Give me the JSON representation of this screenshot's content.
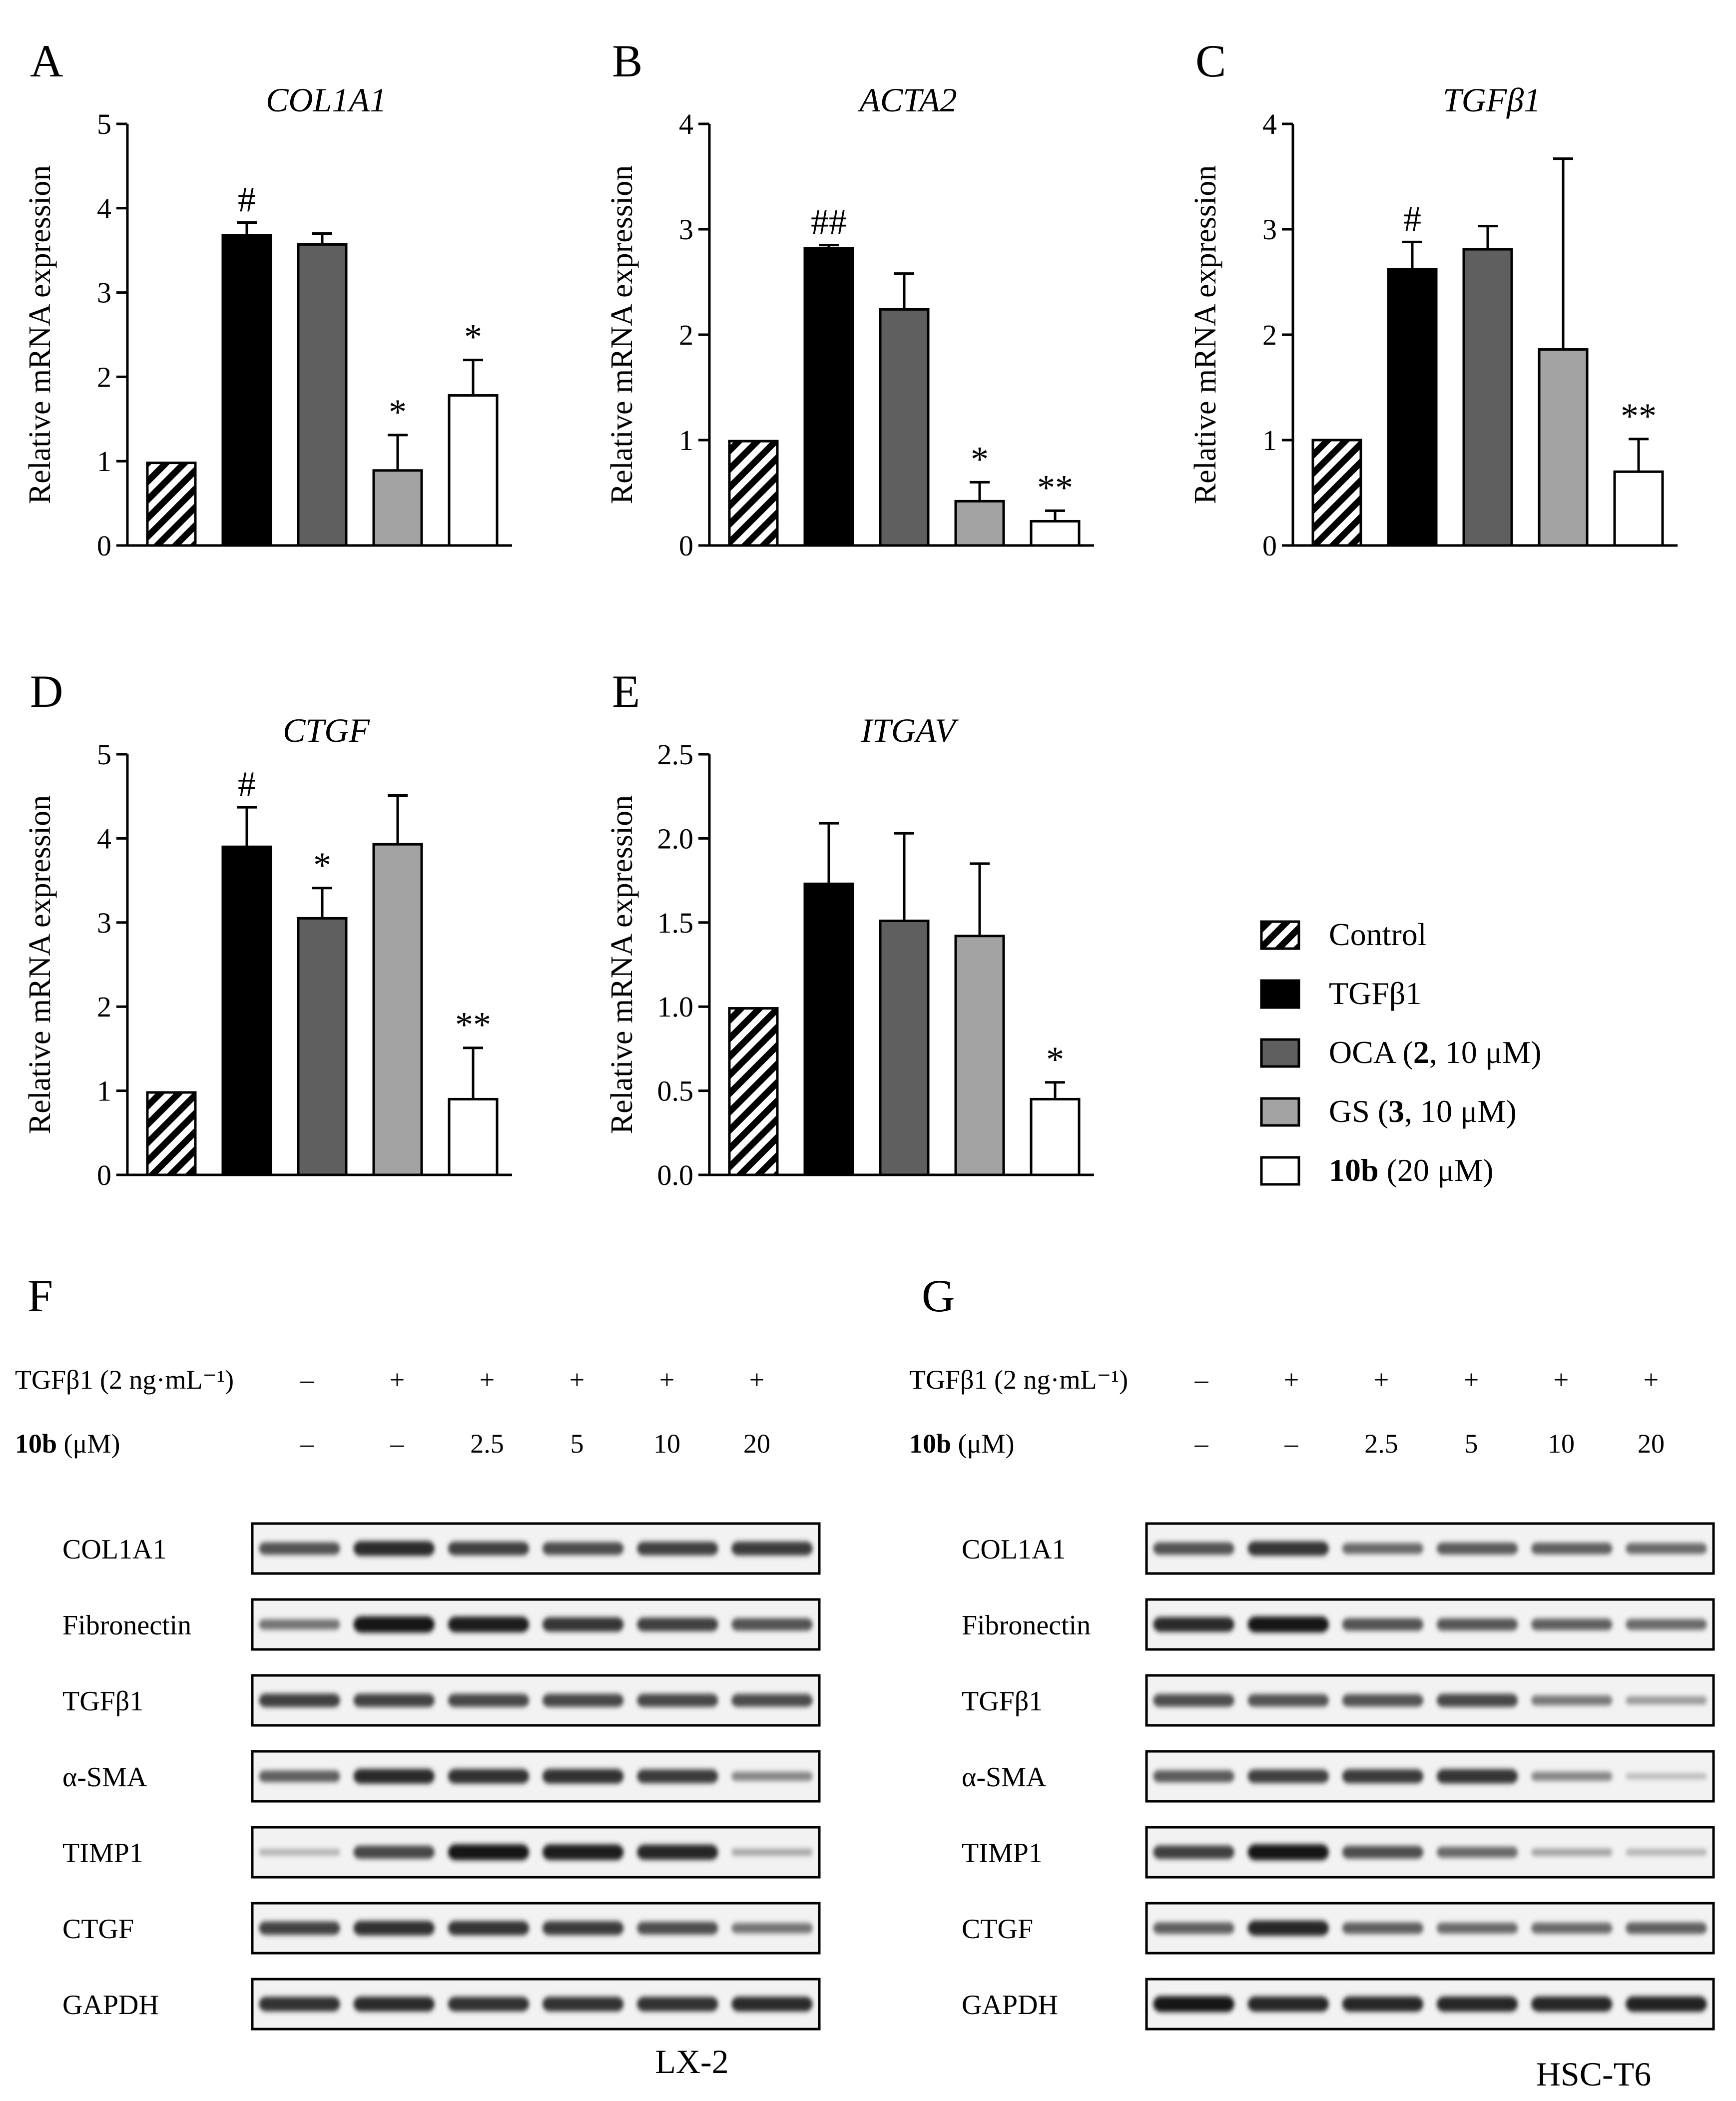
{
  "legend": {
    "items": [
      {
        "label_pre": "",
        "label_bold": "",
        "label_post": "Control",
        "fill": "hatch"
      },
      {
        "label_pre": "",
        "label_bold": "",
        "label_post": "TGFβ1",
        "fill": "#000000"
      },
      {
        "label_pre": "OCA (",
        "label_bold": "2",
        "label_post": ", 10 μM)",
        "fill": "#5f5f5f"
      },
      {
        "label_pre": "GS (",
        "label_bold": "3",
        "label_post": ", 10 μM)",
        "fill": "#a3a3a3"
      },
      {
        "label_pre": "",
        "label_bold": "10b",
        "label_post": " (20 μM)",
        "fill": "#ffffff"
      }
    ]
  },
  "chart_data": [
    {
      "panel": "A",
      "type": "bar",
      "title": "COL1A1",
      "ylabel": "Relative mRNA expression",
      "ylim": [
        0,
        5
      ],
      "yticks": [
        "0",
        "1",
        "2",
        "3",
        "4",
        "5"
      ],
      "categories": [
        "Control",
        "TGFβ1",
        "OCA (2, 10 μM)",
        "GS (3, 10 μM)",
        "10b (20 μM)"
      ],
      "values": [
        0.98,
        3.68,
        3.57,
        0.89,
        1.78
      ],
      "errors": [
        0,
        0.15,
        0.13,
        0.42,
        0.42
      ],
      "annotations": [
        "",
        "#",
        "",
        "*",
        "*"
      ]
    },
    {
      "panel": "B",
      "type": "bar",
      "title": "ACTA2",
      "ylabel": "Relative mRNA expression",
      "ylim": [
        0,
        4
      ],
      "yticks": [
        "0",
        "1",
        "2",
        "3",
        "4"
      ],
      "categories": [
        "Control",
        "TGFβ1",
        "OCA (2, 10 μM)",
        "GS (3, 10 μM)",
        "10b (20 μM)"
      ],
      "values": [
        0.99,
        2.82,
        2.24,
        0.42,
        0.23
      ],
      "errors": [
        0,
        0.03,
        0.34,
        0.18,
        0.1
      ],
      "annotations": [
        "",
        "##",
        "",
        "*",
        "**"
      ]
    },
    {
      "panel": "C",
      "type": "bar",
      "title": "TGFβ1",
      "ylabel": "Relative mRNA expression",
      "ylim": [
        0,
        4
      ],
      "yticks": [
        "0",
        "1",
        "2",
        "3",
        "4"
      ],
      "categories": [
        "Control",
        "TGFβ1",
        "OCA (2, 10 μM)",
        "GS (3, 10 μM)",
        "10b (20 μM)"
      ],
      "values": [
        1.0,
        2.62,
        2.81,
        1.86,
        0.7
      ],
      "errors": [
        0,
        0.26,
        0.22,
        1.81,
        0.31
      ],
      "annotations": [
        "",
        "#",
        "",
        "",
        "**"
      ]
    },
    {
      "panel": "D",
      "type": "bar",
      "title": "CTGF",
      "ylabel": "Relative mRNA expression",
      "ylim": [
        0,
        5
      ],
      "yticks": [
        "0",
        "1",
        "2",
        "3",
        "4",
        "5"
      ],
      "categories": [
        "Control",
        "TGFβ1",
        "OCA (2, 10 μM)",
        "GS (3, 10 μM)",
        "10b (20 μM)"
      ],
      "values": [
        0.98,
        3.9,
        3.05,
        3.93,
        0.9
      ],
      "errors": [
        0,
        0.47,
        0.36,
        0.58,
        0.61
      ],
      "annotations": [
        "",
        "#",
        "*",
        "",
        "**"
      ]
    },
    {
      "panel": "E",
      "type": "bar",
      "title": "ITGAV",
      "ylabel": "Relative mRNA expression",
      "ylim": [
        0,
        2.5
      ],
      "yticks": [
        "0.0",
        "0.5",
        "1.0",
        "1.5",
        "2.0",
        "2.5"
      ],
      "categories": [
        "Control",
        "TGFβ1",
        "OCA (2, 10 μM)",
        "GS (3, 10 μM)",
        "10b (20 μM)"
      ],
      "values": [
        0.99,
        1.73,
        1.51,
        1.42,
        0.45
      ],
      "errors": [
        0,
        0.36,
        0.52,
        0.43,
        0.1
      ],
      "annotations": [
        "",
        "",
        "",
        "",
        "*"
      ]
    }
  ],
  "blots": [
    {
      "panel": "F",
      "cell_line": "LX-2",
      "treatment_label": "TGFβ1 (2 ng·mL⁻¹)",
      "dose_label_bold": "10b",
      "dose_label_post": " (μM)",
      "treatment_signs": [
        "–",
        "+",
        "+",
        "+",
        "+",
        "+"
      ],
      "doses": [
        "–",
        "–",
        "2.5",
        "5",
        "10",
        "20"
      ],
      "proteins": [
        {
          "name": "COL1A1",
          "intensity": [
            0.62,
            0.82,
            0.72,
            0.66,
            0.72,
            0.74
          ]
        },
        {
          "name": "Fibronectin",
          "intensity": [
            0.45,
            0.95,
            0.9,
            0.78,
            0.72,
            0.62
          ]
        },
        {
          "name": "TGFβ1",
          "intensity": [
            0.72,
            0.7,
            0.68,
            0.68,
            0.68,
            0.66
          ]
        },
        {
          "name": "α-SMA",
          "intensity": [
            0.55,
            0.82,
            0.8,
            0.8,
            0.74,
            0.35
          ]
        },
        {
          "name": "TIMP1",
          "intensity": [
            0.12,
            0.68,
            0.92,
            0.9,
            0.85,
            0.18
          ]
        },
        {
          "name": "CTGF",
          "intensity": [
            0.7,
            0.8,
            0.78,
            0.75,
            0.65,
            0.45
          ]
        },
        {
          "name": "GAPDH",
          "intensity": [
            0.8,
            0.82,
            0.8,
            0.8,
            0.8,
            0.82
          ]
        }
      ]
    },
    {
      "panel": "G",
      "cell_line": "HSC-T6",
      "treatment_label": "TGFβ1 (2 ng·mL⁻¹)",
      "dose_label_bold": "10b",
      "dose_label_post": " (μM)",
      "treatment_signs": [
        "–",
        "+",
        "+",
        "+",
        "+",
        "+"
      ],
      "doses": [
        "–",
        "–",
        "2.5",
        "5",
        "10",
        "20"
      ],
      "proteins": [
        {
          "name": "COL1A1",
          "intensity": [
            0.62,
            0.78,
            0.5,
            0.58,
            0.55,
            0.5
          ]
        },
        {
          "name": "Fibronectin",
          "intensity": [
            0.82,
            0.92,
            0.62,
            0.6,
            0.55,
            0.5
          ]
        },
        {
          "name": "TGFβ1",
          "intensity": [
            0.65,
            0.62,
            0.62,
            0.68,
            0.42,
            0.25
          ]
        },
        {
          "name": "α-SMA",
          "intensity": [
            0.58,
            0.72,
            0.75,
            0.78,
            0.35,
            0.08
          ]
        },
        {
          "name": "TIMP1",
          "intensity": [
            0.72,
            0.92,
            0.65,
            0.5,
            0.2,
            0.12
          ]
        },
        {
          "name": "CTGF",
          "intensity": [
            0.55,
            0.85,
            0.55,
            0.5,
            0.5,
            0.55
          ]
        },
        {
          "name": "GAPDH",
          "intensity": [
            0.92,
            0.85,
            0.85,
            0.85,
            0.85,
            0.88
          ]
        }
      ]
    }
  ]
}
